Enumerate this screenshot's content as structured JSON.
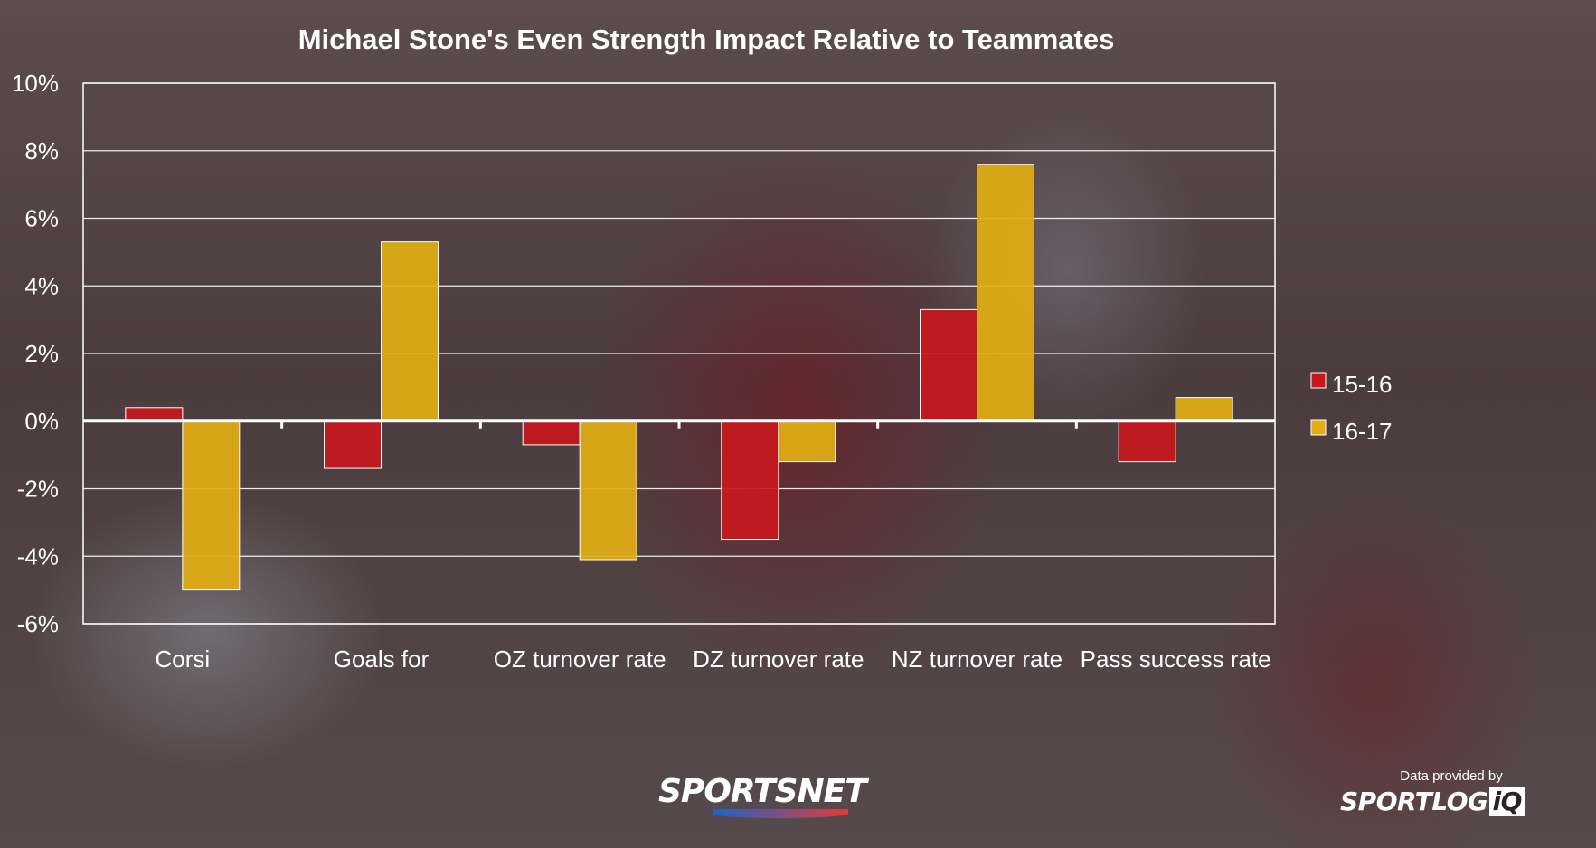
{
  "chart_data": {
    "type": "bar",
    "title": "Michael Stone's Even Strength Impact Relative to Teammates",
    "categories": [
      "Corsi",
      "Goals for",
      "OZ turnover rate",
      "DZ turnover rate",
      "NZ turnover rate",
      "Pass success rate"
    ],
    "series": [
      {
        "name": "15-16",
        "color": "#c8181e",
        "values": [
          0.4,
          -1.4,
          -0.7,
          -3.5,
          3.3,
          -1.2
        ]
      },
      {
        "name": "16-17",
        "color": "#e2ae14",
        "values": [
          -5.0,
          5.3,
          -4.1,
          -1.2,
          7.6,
          0.7
        ]
      }
    ],
    "ylim": [
      -6,
      10
    ],
    "yticks": [
      "-6%",
      "-4%",
      "-2%",
      "0%",
      "2%",
      "4%",
      "6%",
      "8%",
      "10%"
    ],
    "ytick_values": [
      -6,
      -4,
      -2,
      0,
      2,
      4,
      6,
      8,
      10
    ],
    "grid": true,
    "legend_position": "right"
  },
  "branding": {
    "sportsnet": "SPORTSNET",
    "provided_by": "Data provided by",
    "sportlogiq_main": "SPORTLOG",
    "sportlogiq_iq": "iQ"
  }
}
